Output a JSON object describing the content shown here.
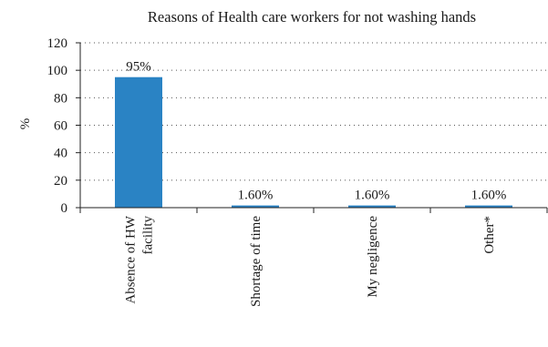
{
  "chart_data": {
    "type": "bar",
    "title": "Reasons of Health care workers for not washing hands",
    "ylabel": "%",
    "xlabel": "",
    "ylim": [
      0,
      120
    ],
    "yticks": [
      0,
      20,
      40,
      60,
      80,
      100,
      120
    ],
    "grid": true,
    "categories": [
      [
        "Absence of HW",
        "facility"
      ],
      [
        "Shortage of time"
      ],
      [
        "My negligence"
      ],
      [
        "Other*"
      ]
    ],
    "values": [
      95,
      1.6,
      1.6,
      1.6
    ],
    "data_labels": [
      "95%",
      "1.60%",
      "1.60%",
      "1.60%"
    ],
    "bar_color": "#2a83c4"
  }
}
